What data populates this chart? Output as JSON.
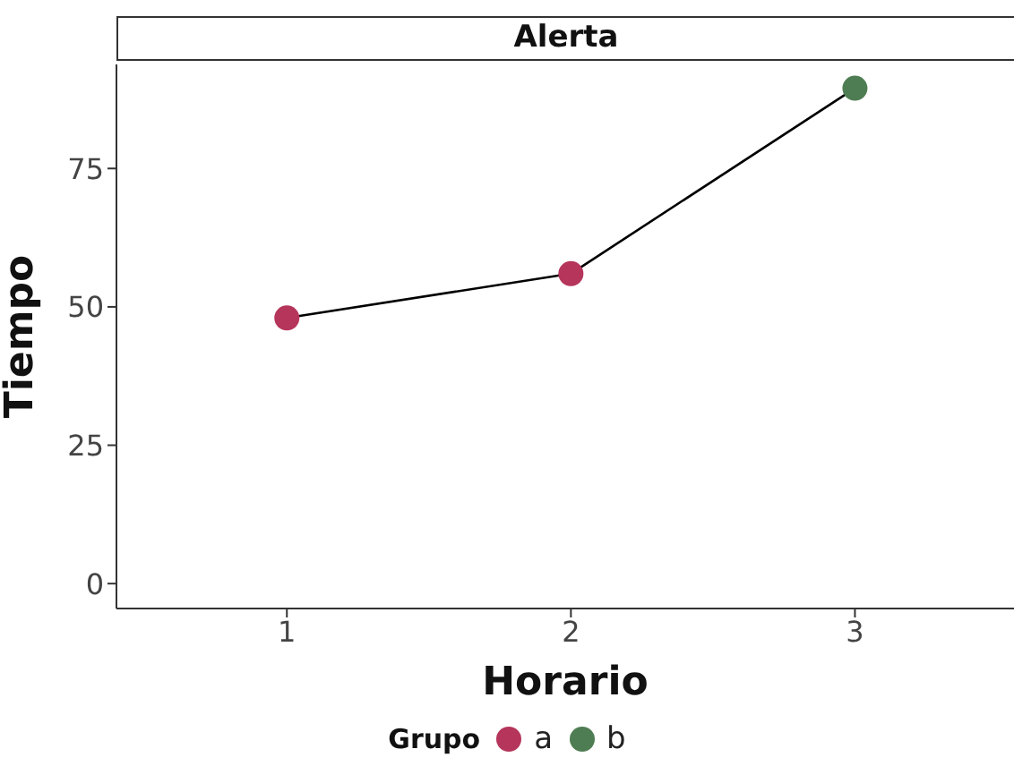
{
  "chart_data": {
    "type": "scatter",
    "title": "Alerta",
    "xlabel": "Horario",
    "ylabel": "Tiempo",
    "legend_title": "Grupo",
    "legend": "bottom",
    "x": [
      1,
      2,
      3
    ],
    "xlim": [
      0.4,
      3.56
    ],
    "xticks": [
      1,
      2,
      3
    ],
    "ylim": [
      -4.5,
      93.8
    ],
    "yticks": [
      0,
      25,
      50,
      75
    ],
    "series": [
      {
        "type": "line",
        "color": "#000000",
        "values": [
          48,
          56,
          89.5
        ]
      },
      {
        "name": "a",
        "marker": "circle",
        "color": "#b5355b",
        "values": [
          48,
          56,
          null
        ]
      },
      {
        "name": "b",
        "marker": "circle",
        "color": "#4f7d53",
        "values": [
          null,
          null,
          89.5
        ]
      }
    ]
  }
}
